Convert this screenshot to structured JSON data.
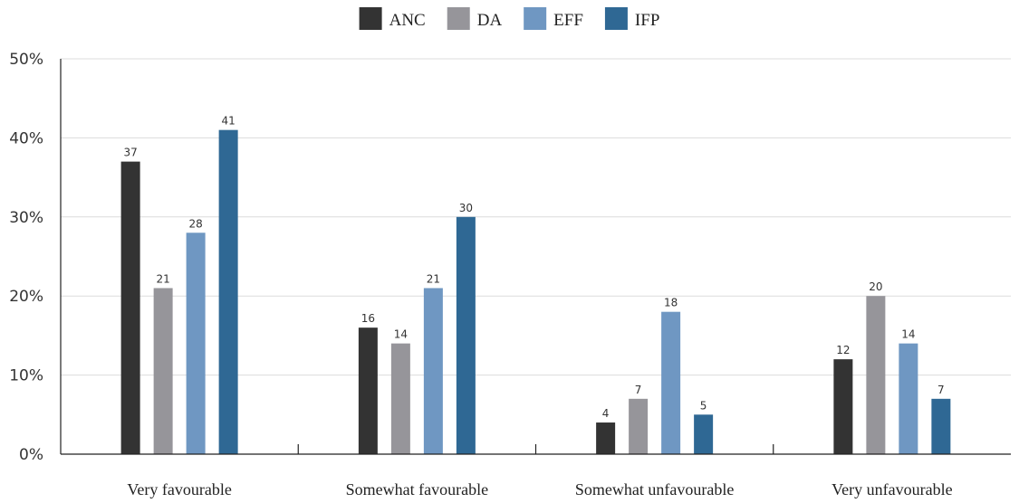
{
  "chart_data": {
    "type": "bar",
    "categories": [
      "Very favourable",
      "Somewhat favourable",
      "Somewhat unfavourable",
      "Very unfavourable"
    ],
    "series": [
      {
        "name": "ANC",
        "color": "#333333",
        "values": [
          37,
          16,
          4,
          12
        ]
      },
      {
        "name": "DA",
        "color": "#96959a",
        "values": [
          21,
          14,
          7,
          20
        ]
      },
      {
        "name": "EFF",
        "color": "#6f97c2",
        "values": [
          28,
          21,
          18,
          14
        ]
      },
      {
        "name": "IFP",
        "color": "#2f6894",
        "values": [
          41,
          30,
          5,
          7
        ]
      }
    ],
    "ylim": [
      0,
      50
    ],
    "yticks": [
      0,
      10,
      20,
      30,
      40,
      50
    ],
    "ytick_labels": [
      "0%",
      "10%",
      "20%",
      "30%",
      "40%",
      "50%"
    ],
    "data_labels": true,
    "grid": true,
    "legend_position": "top-center"
  }
}
